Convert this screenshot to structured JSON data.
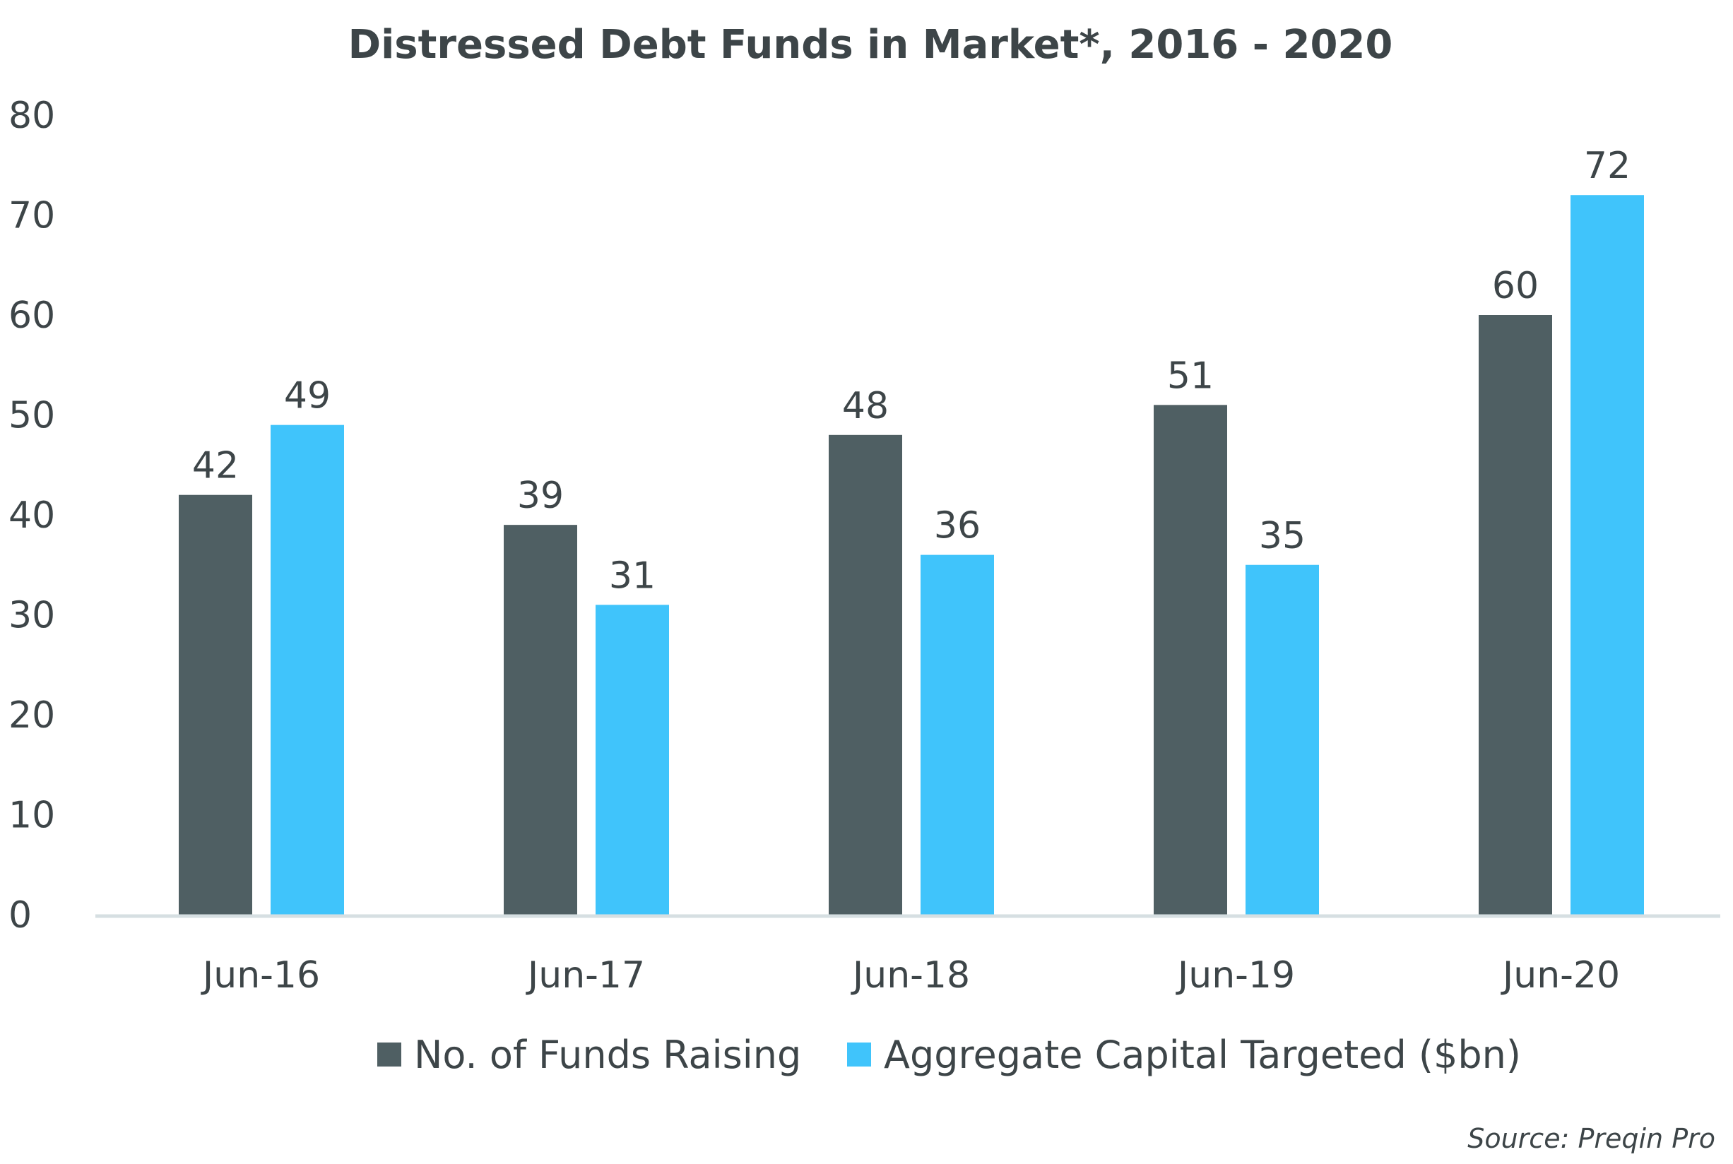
{
  "chart_data": {
    "type": "bar",
    "title": "Distressed Debt Funds in Market*, 2016 - 2020",
    "categories": [
      "Jun-16",
      "Jun-17",
      "Jun-18",
      "Jun-19",
      "Jun-20"
    ],
    "series": [
      {
        "name": "No. of Funds Raising",
        "values": [
          42,
          39,
          48,
          51,
          60
        ],
        "color": "#4f5f63"
      },
      {
        "name": "Aggregate Capital Targeted ($bn)",
        "values": [
          49,
          31,
          36,
          35,
          72
        ],
        "color": "#40c4fb"
      }
    ],
    "ylim": [
      0,
      80
    ],
    "yticks": [
      0,
      10,
      20,
      30,
      40,
      50,
      60,
      70,
      80
    ],
    "grid": false,
    "legend_position": "bottom",
    "data_labels": true,
    "source": "Source: Preqin Pro",
    "axis_color": "#d6dfe2"
  }
}
